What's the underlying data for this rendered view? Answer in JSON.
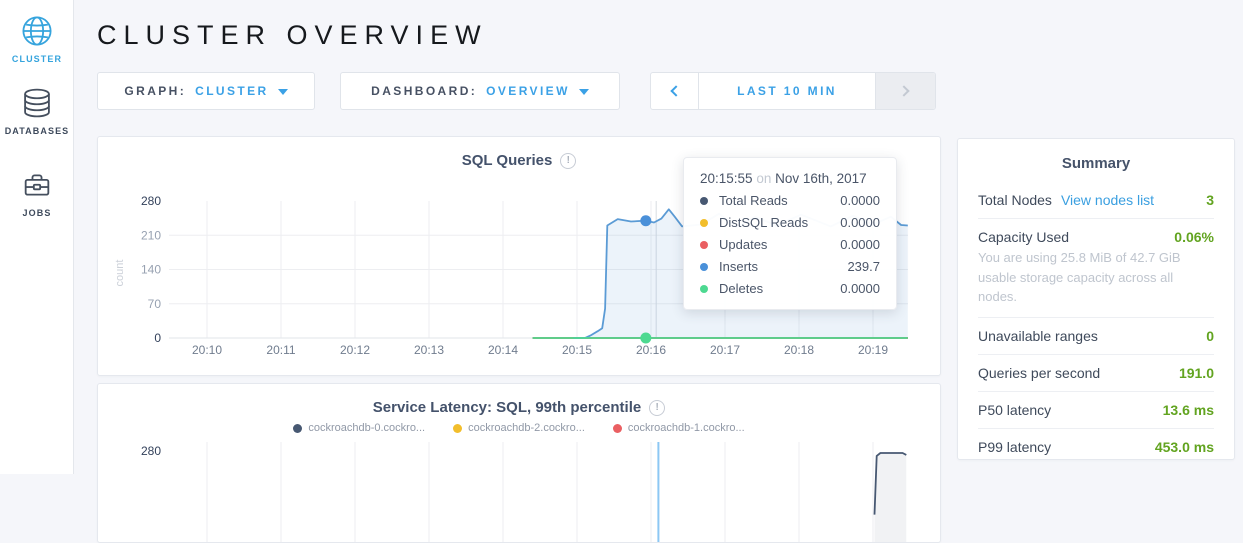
{
  "header": {
    "title": "CLUSTER OVERVIEW"
  },
  "sidebar": {
    "items": [
      {
        "label": "CLUSTER",
        "icon": "globe-icon",
        "active": true
      },
      {
        "label": "DATABASES",
        "icon": "databases-icon",
        "active": false
      },
      {
        "label": "JOBS",
        "icon": "briefcase-icon",
        "active": false
      }
    ]
  },
  "controls": {
    "graph": {
      "label": "GRAPH:",
      "value": "CLUSTER"
    },
    "dashboard": {
      "label": "DASHBOARD:",
      "value": "OVERVIEW"
    },
    "timewindow": {
      "label": "LAST 10 MIN"
    }
  },
  "tooltip": {
    "time": "20:15:55",
    "on": "on",
    "date": "Nov 16th, 2017",
    "rows": [
      {
        "name": "Total Reads",
        "value": "0.0000",
        "color": "#475872"
      },
      {
        "name": "DistSQL Reads",
        "value": "0.0000",
        "color": "#F2BE2C"
      },
      {
        "name": "Updates",
        "value": "0.0000",
        "color": "#EA5F62"
      },
      {
        "name": "Inserts",
        "value": "239.7",
        "color": "#4A90D9"
      },
      {
        "name": "Deletes",
        "value": "0.0000",
        "color": "#4DD991"
      }
    ]
  },
  "summary": {
    "title": "Summary",
    "rows": [
      {
        "label": "Total Nodes",
        "link": "View nodes list",
        "value": "3"
      },
      {
        "label": "Capacity Used",
        "value": "0.06%",
        "description": "You are using 25.8 MiB of 42.7 GiB usable storage capacity across all nodes."
      },
      {
        "label": "Unavailable ranges",
        "value": "0"
      },
      {
        "label": "Queries per second",
        "value": "191.0"
      },
      {
        "label": "P50 latency",
        "value": "13.6 ms"
      },
      {
        "label": "P99 latency",
        "value": "453.0 ms"
      }
    ]
  },
  "chart_data": [
    {
      "type": "line",
      "title": "SQL Queries",
      "ylabel": "count",
      "ylim": [
        0,
        280
      ],
      "yticks": [
        0,
        70,
        140,
        210,
        280
      ],
      "xticks": [
        "20:10",
        "20:11",
        "20:12",
        "20:13",
        "20:14",
        "20:15",
        "20:16",
        "20:17",
        "20:18",
        "20:19"
      ],
      "x_unit": "minutes after 20:10",
      "grid": true,
      "hover_time_min": 6.07,
      "series": [
        {
          "name": "Total Reads",
          "color": "#475872",
          "points": [
            [
              4.4,
              0
            ],
            [
              9.47,
              0
            ]
          ]
        },
        {
          "name": "DistSQL Reads",
          "color": "#F2BE2C",
          "points": [
            [
              4.4,
              0
            ],
            [
              9.47,
              0
            ]
          ]
        },
        {
          "name": "Updates",
          "color": "#EA5F62",
          "points": [
            [
              4.4,
              0
            ],
            [
              9.47,
              0
            ]
          ]
        },
        {
          "name": "Inserts",
          "color": "#5B9BD5",
          "fill": true,
          "points": [
            [
              4.95,
              0
            ],
            [
              5.18,
              5
            ],
            [
              5.28,
              14
            ],
            [
              5.34,
              20
            ],
            [
              5.38,
              60
            ],
            [
              5.11,
              0
            ],
            [
              5.05,
              0
            ],
            [
              5.41,
              230
            ],
            [
              5.55,
              243
            ],
            [
              5.73,
              238
            ],
            [
              5.93,
              239.7
            ],
            [
              6.04,
              236
            ],
            [
              6.14,
              244
            ],
            [
              6.24,
              263
            ],
            [
              6.32,
              248
            ],
            [
              6.42,
              228
            ],
            [
              6.68,
              232
            ],
            [
              6.92,
              254
            ],
            [
              7.16,
              226
            ],
            [
              7.41,
              248
            ],
            [
              7.69,
              230
            ],
            [
              8.03,
              252
            ],
            [
              8.43,
              228
            ],
            [
              8.73,
              250
            ],
            [
              9.0,
              232
            ],
            [
              9.24,
              248
            ],
            [
              9.38,
              231
            ],
            [
              9.47,
              230
            ]
          ],
          "points_note": "values hidden behind tooltip between 6.5 and 9.3 are estimates"
        },
        {
          "name": "Deletes",
          "color": "#4DD991",
          "points": [
            [
              4.4,
              0
            ],
            [
              9.47,
              0
            ]
          ]
        }
      ],
      "highlight_dots": [
        {
          "series": "Inserts",
          "x": 5.93,
          "y": 239.7,
          "color": "#4A90D9"
        },
        {
          "series": "Deletes",
          "x": 5.93,
          "y": 0,
          "color": "#4DD991"
        }
      ]
    },
    {
      "type": "line",
      "title": "Service Latency: SQL, 99th percentile",
      "ylim": [
        0,
        280
      ],
      "yticks_visible": [
        280
      ],
      "xticks": [
        "20:10",
        "20:11",
        "20:12",
        "20:13",
        "20:14",
        "20:15",
        "20:16",
        "20:17",
        "20:18",
        "20:19"
      ],
      "grid": true,
      "hover_time_min": 6.1,
      "legend": [
        {
          "label": "cockroachdb-0.cockro...",
          "color": "#475872"
        },
        {
          "label": "cockroachdb-2.cockro...",
          "color": "#F2BE2C"
        },
        {
          "label": "cockroachdb-1.cockro...",
          "color": "#EA5F62"
        }
      ],
      "series": [
        {
          "name": "cockroachdb-0",
          "color": "#475872",
          "fill": true,
          "points": [
            [
              9.02,
              150
            ],
            [
              9.05,
              270
            ],
            [
              9.1,
              276
            ],
            [
              9.4,
              276
            ],
            [
              9.45,
              272
            ]
          ],
          "points_note": "chart clipped at bottom of screenshot; only spike top visible"
        }
      ]
    }
  ],
  "colors": {
    "accent_blue": "#3BA1E6",
    "link_blue": "#3A9FE0",
    "status_green": "#62A420",
    "navy_series": "#475872",
    "yellow_series": "#F2BE2C",
    "red_series": "#EA5F62",
    "blue_series": "#5B9BD5",
    "green_series": "#4DD991",
    "page_bg": "#F5F6FA"
  }
}
